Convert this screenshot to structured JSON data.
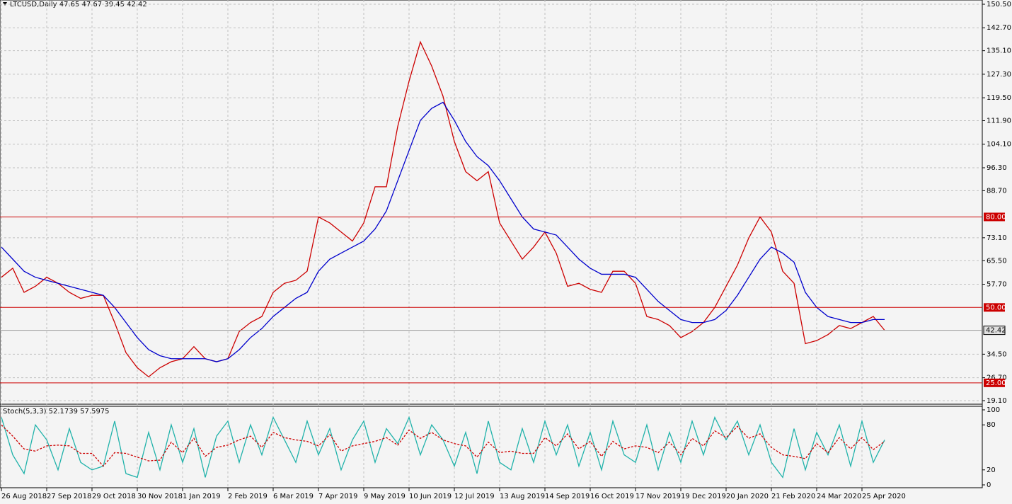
{
  "chart_data": [
    {
      "type": "line",
      "title": "LTCUSD,Daily  47.65 47.67 39.45 42.42",
      "categories": [
        "26 Aug 2018",
        null,
        null,
        null,
        "27 Sep 2018",
        null,
        null,
        null,
        "29 Oct 2018",
        null,
        null,
        null,
        "30 Nov 2018",
        null,
        null,
        null,
        "1 Jan 2019",
        null,
        null,
        null,
        "2 Feb 2019",
        null,
        null,
        null,
        "6 Mar 2019",
        null,
        null,
        null,
        "7 Apr 2019",
        null,
        null,
        null,
        "9 May 2019",
        null,
        null,
        null,
        "10 Jun 2019",
        null,
        null,
        null,
        "12 Jul 2019",
        null,
        null,
        null,
        "13 Aug 2019",
        null,
        null,
        null,
        "14 Sep 2019",
        null,
        null,
        null,
        "16 Oct 2019",
        null,
        null,
        null,
        "17 Nov 2019",
        null,
        null,
        null,
        "19 Dec 2019",
        null,
        null,
        null,
        "20 Jan 2020",
        null,
        null,
        null,
        "21 Feb 2020",
        null,
        null,
        null,
        "24 Mar 2020",
        null,
        null,
        null,
        "25 Apr 2020",
        null,
        null
      ],
      "series": [
        {
          "color": "#cc0000",
          "values": [
            60,
            63,
            55,
            57,
            60,
            58,
            55,
            53,
            54,
            54,
            45,
            35,
            30,
            27,
            30,
            32,
            33,
            37,
            33,
            32,
            33,
            42,
            45,
            47,
            55,
            58,
            59,
            62,
            80,
            78,
            75,
            72,
            78,
            90,
            90,
            110,
            125,
            138,
            130,
            120,
            105,
            95,
            92,
            95,
            78,
            72,
            66,
            70,
            75,
            68,
            57,
            58,
            56,
            55,
            62,
            62,
            58,
            47,
            46,
            44,
            40,
            42,
            45,
            50,
            57,
            64,
            73,
            80,
            75,
            62,
            58,
            38,
            39,
            41,
            44,
            43,
            45,
            47,
            42.42
          ]
        },
        {
          "color": "#0000cc",
          "values": [
            70,
            66,
            62,
            60,
            59,
            58,
            57,
            56,
            55,
            54,
            50,
            45,
            40,
            36,
            34,
            33,
            33,
            33,
            33,
            32,
            33,
            36,
            40,
            43,
            47,
            50,
            53,
            55,
            62,
            66,
            68,
            70,
            72,
            76,
            82,
            92,
            102,
            112,
            116,
            118,
            112,
            105,
            100,
            97,
            92,
            86,
            80,
            76,
            75,
            74,
            70,
            66,
            63,
            61,
            61,
            61,
            60,
            56,
            52,
            49,
            46,
            45,
            45,
            46,
            49,
            54,
            60,
            66,
            70,
            68,
            65,
            55,
            50,
            47,
            46,
            45,
            45,
            46,
            46
          ]
        }
      ],
      "ylim": [
        19.1,
        150.5
      ],
      "yticks": [
        {
          "value": 150.5,
          "label": "150.50"
        },
        {
          "value": 142.7,
          "label": "142.70"
        },
        {
          "value": 135.1,
          "label": "135.10"
        },
        {
          "value": 127.3,
          "label": "127.30"
        },
        {
          "value": 119.5,
          "label": "119.50"
        },
        {
          "value": 111.9,
          "label": "111.90"
        },
        {
          "value": 104.1,
          "label": "104.10"
        },
        {
          "value": 96.3,
          "label": "96.30"
        },
        {
          "value": 88.7,
          "label": "88.70"
        },
        {
          "value": 73.1,
          "label": "73.10"
        },
        {
          "value": 65.5,
          "label": "65.50"
        },
        {
          "value": 57.7,
          "label": "57.70"
        },
        {
          "value": 34.5,
          "label": "34.50"
        },
        {
          "value": 26.7,
          "label": "26.70"
        },
        {
          "value": 19.1,
          "label": "19.10"
        }
      ],
      "levels": [
        {
          "value": 80,
          "label": "80.00"
        },
        {
          "value": 50,
          "label": "50.00"
        },
        {
          "value": 25,
          "label": "25.00"
        }
      ],
      "level_color": "#cc0000",
      "last_price": {
        "value": 42.42,
        "label": "42.42"
      },
      "grid": true
    },
    {
      "type": "line",
      "title": "Stoch(5,3,3) 52.1739 57.5975",
      "series": [
        {
          "color": "#20b2aa",
          "dash": false,
          "values": [
            90,
            40,
            15,
            80,
            60,
            20,
            75,
            30,
            20,
            25,
            85,
            15,
            10,
            70,
            20,
            80,
            30,
            75,
            10,
            65,
            85,
            30,
            80,
            40,
            90,
            60,
            30,
            85,
            40,
            75,
            20,
            60,
            85,
            30,
            75,
            55,
            90,
            40,
            80,
            60,
            25,
            70,
            15,
            85,
            30,
            20,
            75,
            30,
            85,
            40,
            80,
            25,
            70,
            20,
            85,
            40,
            30,
            80,
            20,
            70,
            30,
            85,
            40,
            90,
            60,
            85,
            40,
            80,
            30,
            10,
            75,
            20,
            70,
            40,
            80,
            25,
            85,
            30,
            60
          ]
        },
        {
          "color": "#cc0000",
          "dash": true,
          "values": [
            80,
            65,
            48,
            45,
            52,
            53,
            52,
            42,
            42,
            25,
            43,
            42,
            37,
            32,
            33,
            57,
            43,
            62,
            38,
            50,
            53,
            60,
            65,
            50,
            70,
            63,
            60,
            58,
            52,
            67,
            45,
            52,
            55,
            58,
            63,
            53,
            73,
            62,
            70,
            60,
            55,
            52,
            37,
            57,
            43,
            45,
            42,
            42,
            63,
            52,
            68,
            48,
            58,
            38,
            58,
            48,
            52,
            50,
            43,
            57,
            40,
            62,
            52,
            72,
            63,
            78,
            62,
            68,
            50,
            40,
            38,
            35,
            55,
            43,
            63,
            48,
            63,
            47,
            58
          ]
        }
      ],
      "ylim": [
        0,
        100
      ],
      "yticks": [
        100,
        80,
        20,
        0
      ],
      "grid": false
    }
  ]
}
